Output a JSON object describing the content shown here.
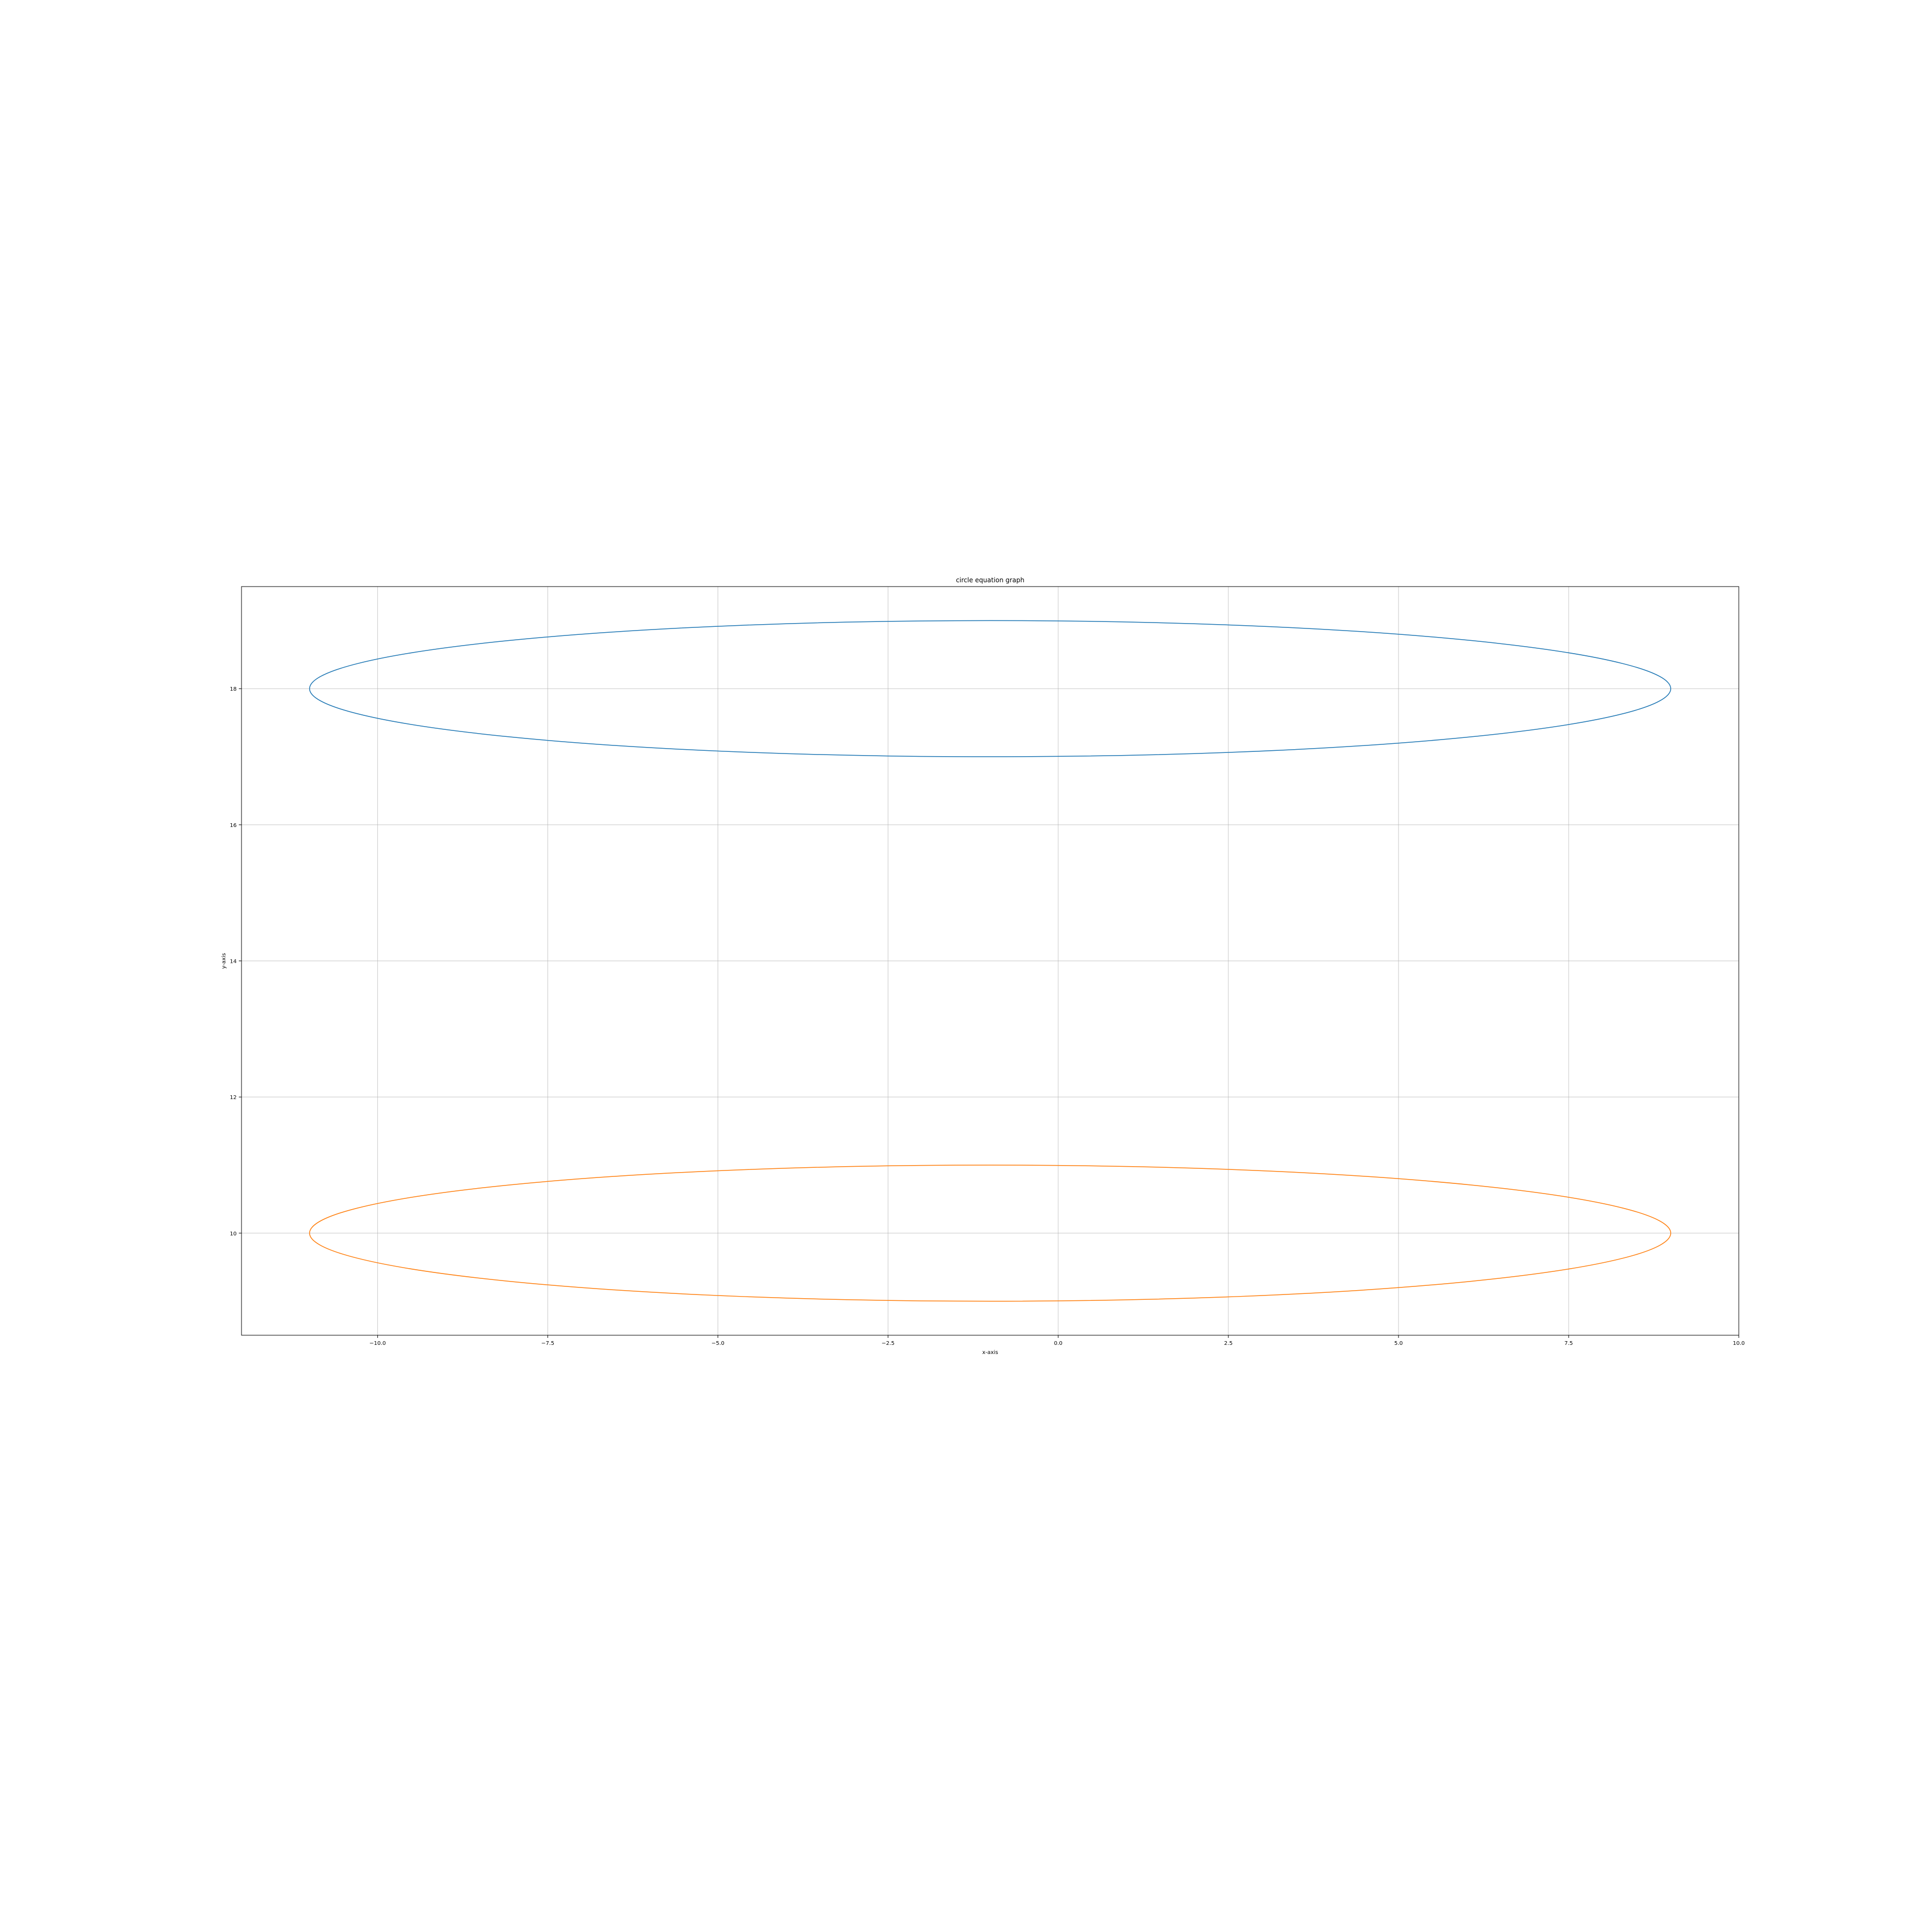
{
  "chart_data": {
    "type": "line",
    "title": "circle equation graph",
    "xlabel": "x-axis",
    "ylabel": "y-axis",
    "xlim": [
      -12.0,
      10.0
    ],
    "ylim": [
      8.5,
      19.5
    ],
    "grid": true,
    "x_ticks": [
      -10.0,
      -7.5,
      -5.0,
      -2.5,
      0.0,
      2.5,
      5.0,
      7.5,
      10.0
    ],
    "x_tick_labels": [
      "−10.0",
      "−7.5",
      "−5.0",
      "−2.5",
      "0.0",
      "2.5",
      "5.0",
      "7.5",
      "10.0"
    ],
    "y_ticks": [
      10,
      12,
      14,
      16,
      18
    ],
    "y_tick_labels": [
      "10",
      "12",
      "14",
      "16",
      "18"
    ],
    "series": [
      {
        "shape": "ellipse",
        "color": "#1f77b4",
        "center": [
          -1,
          18
        ],
        "x_semi_axis": 10,
        "y_semi_axis": 1,
        "x_range": [
          -11,
          9
        ],
        "y_range": [
          17,
          19
        ]
      },
      {
        "shape": "ellipse",
        "color": "#ff7f0e",
        "center": [
          -1,
          10
        ],
        "x_semi_axis": 10,
        "y_semi_axis": 1,
        "x_range": [
          -11,
          9
        ],
        "y_range": [
          9,
          11
        ]
      }
    ]
  }
}
